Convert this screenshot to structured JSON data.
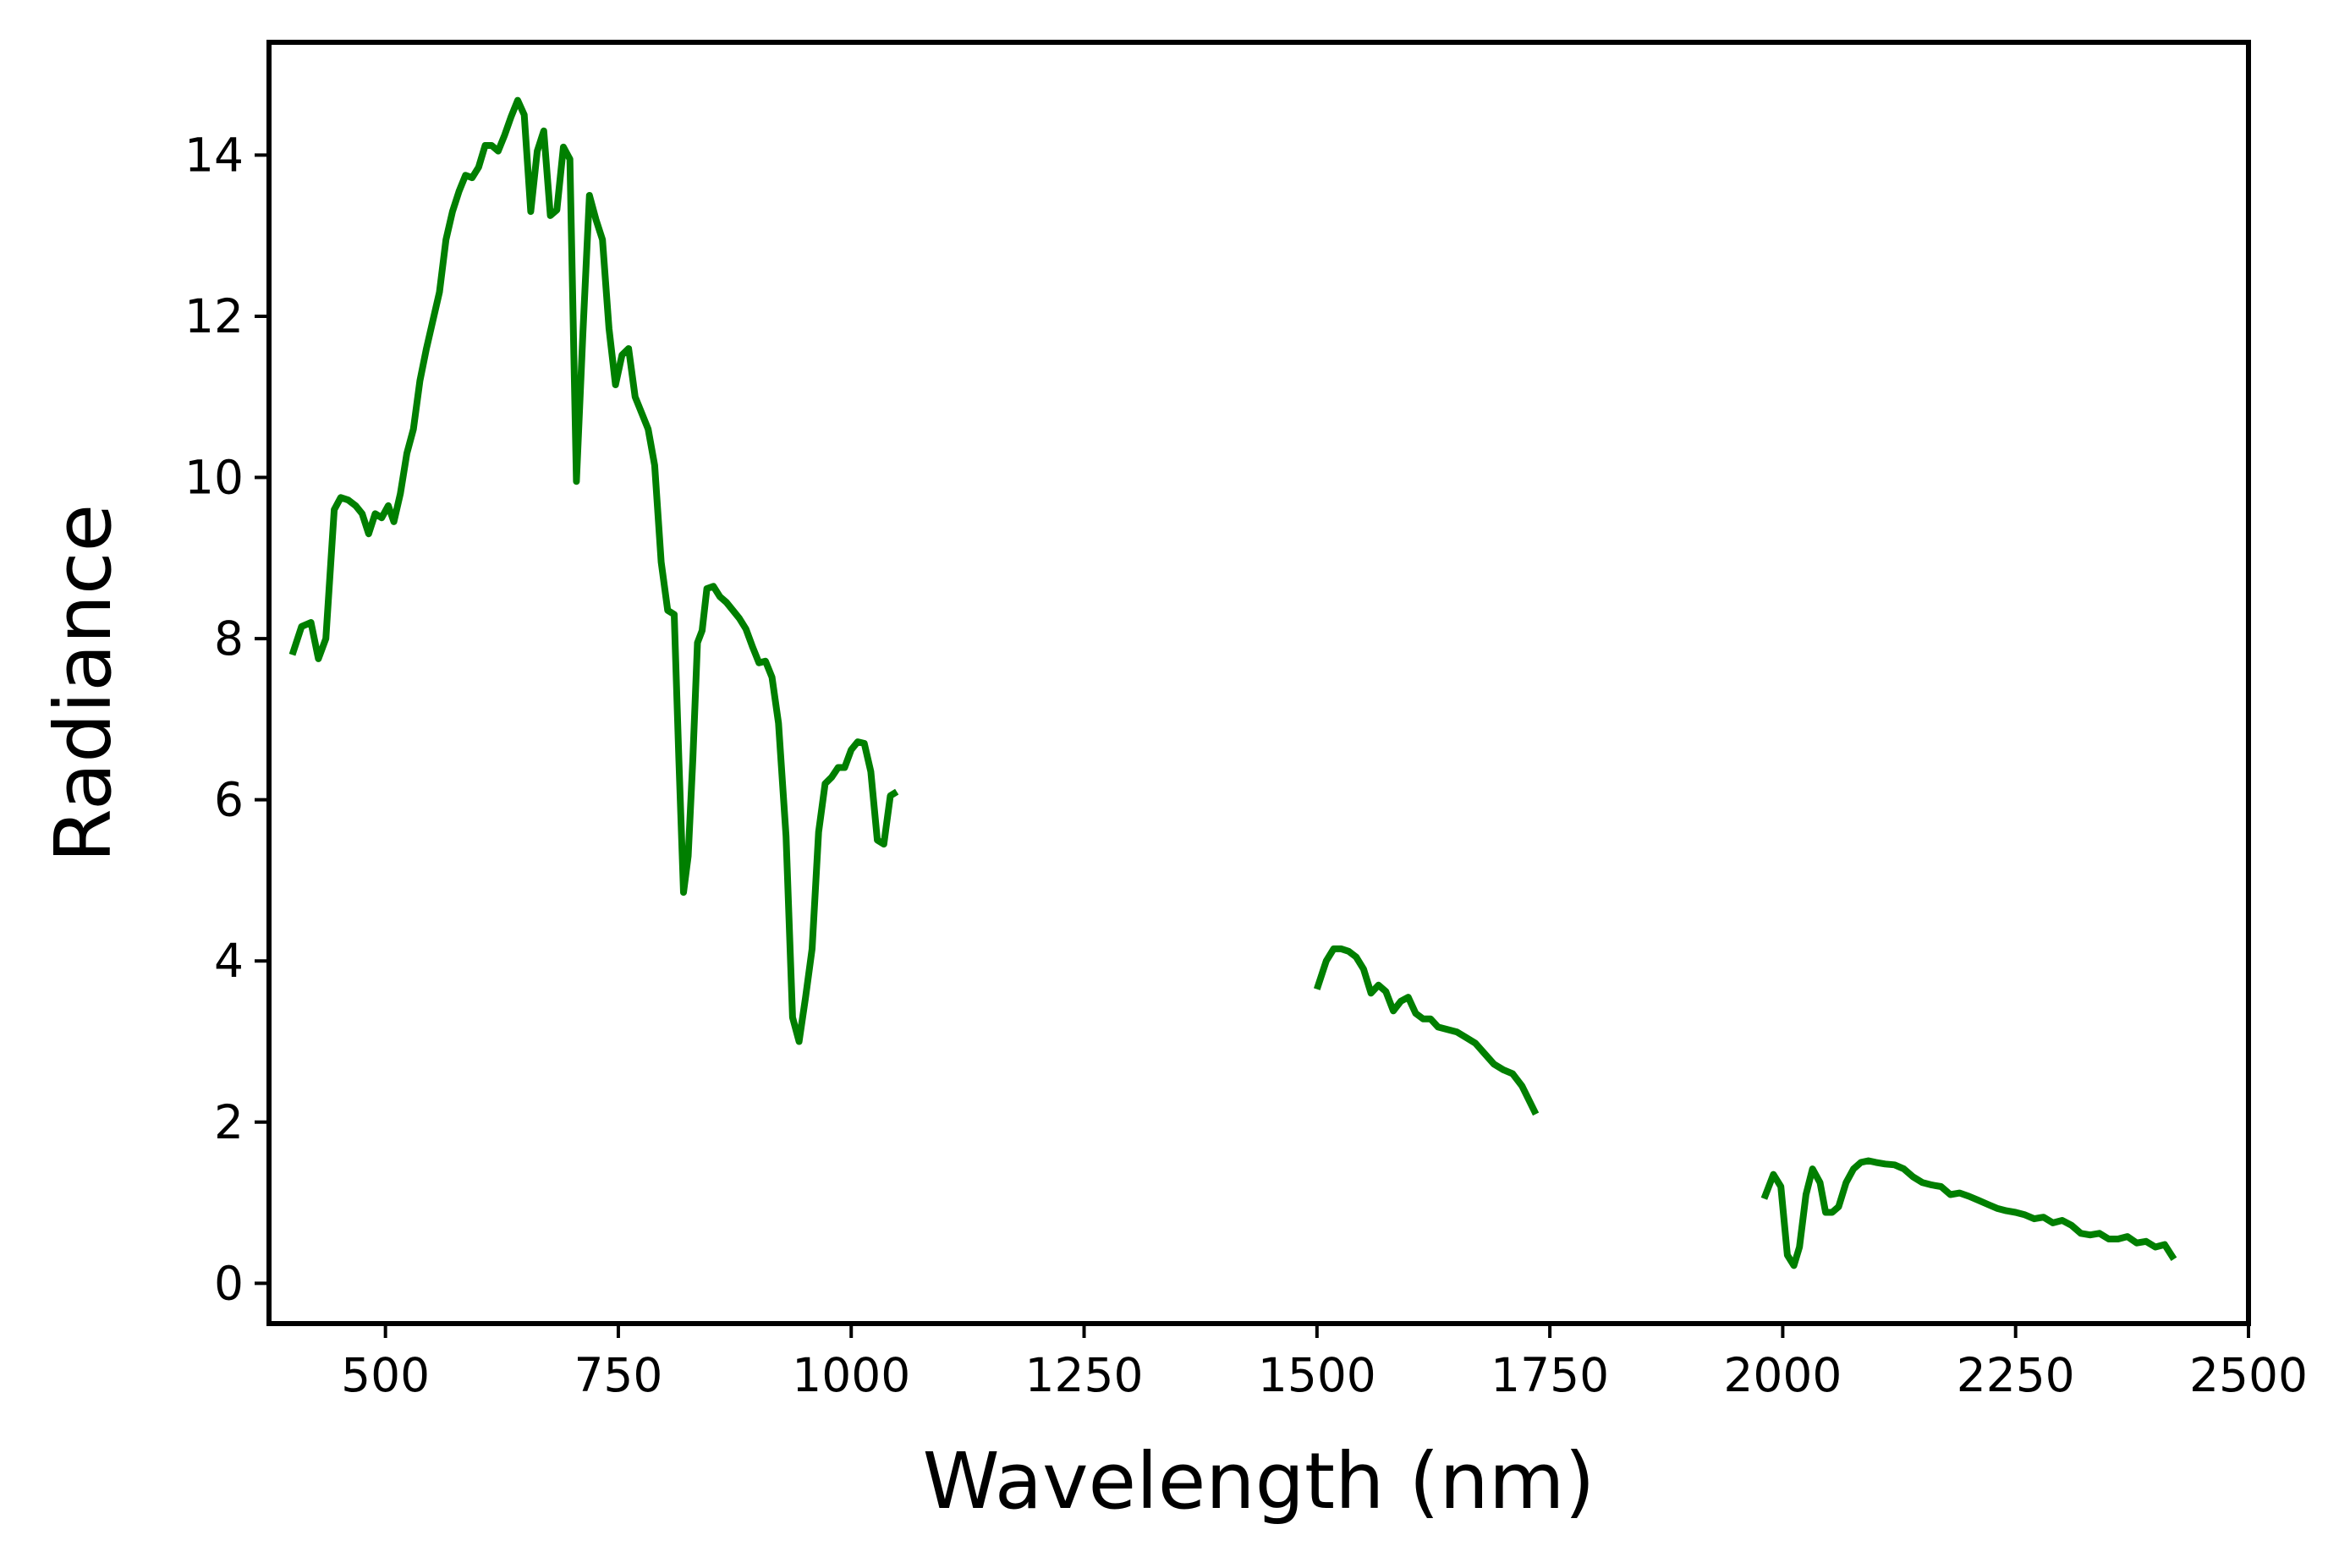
{
  "chart_data": {
    "type": "line",
    "title": "",
    "xlabel": "Wavelength (nm)",
    "ylabel": "Radiance",
    "xlim": [
      375,
      2500
    ],
    "ylim": [
      -0.5,
      15.4
    ],
    "xticks": [
      500,
      750,
      1000,
      1250,
      1500,
      1750,
      2000,
      2250,
      2500
    ],
    "yticks": [
      0,
      2,
      4,
      6,
      8,
      10,
      12,
      14
    ],
    "grid": false,
    "legend": "none",
    "colors": {
      "line": "#007f00",
      "frame": "#000000",
      "background": "#ffffff"
    },
    "series": [
      {
        "segments": [
          [
            [
              400,
              7.8
            ],
            [
              410,
              8.15
            ],
            [
              420,
              8.2
            ],
            [
              428,
              7.75
            ],
            [
              436,
              8.0
            ],
            [
              445,
              9.6
            ],
            [
              452,
              9.75
            ],
            [
              460,
              9.72
            ],
            [
              468,
              9.65
            ],
            [
              475,
              9.55
            ],
            [
              482,
              9.3
            ],
            [
              489,
              9.55
            ],
            [
              496,
              9.5
            ],
            [
              503,
              9.65
            ],
            [
              509,
              9.45
            ],
            [
              516,
              9.8
            ],
            [
              523,
              10.3
            ],
            [
              530,
              10.6
            ],
            [
              537,
              11.2
            ],
            [
              544,
              11.6
            ],
            [
              551,
              11.95
            ],
            [
              558,
              12.3
            ],
            [
              565,
              12.95
            ],
            [
              572,
              13.3
            ],
            [
              579,
              13.55
            ],
            [
              586,
              13.75
            ],
            [
              593,
              13.72
            ],
            [
              600,
              13.85
            ],
            [
              607,
              14.12
            ],
            [
              614,
              14.12
            ],
            [
              621,
              14.05
            ],
            [
              628,
              14.25
            ],
            [
              635,
              14.48
            ],
            [
              642,
              14.68
            ],
            [
              649,
              14.5
            ],
            [
              656,
              13.3
            ],
            [
              663,
              14.05
            ],
            [
              670,
              14.3
            ],
            [
              677,
              13.25
            ],
            [
              684,
              13.32
            ],
            [
              691,
              14.1
            ],
            [
              698,
              13.95
            ],
            [
              705,
              9.95
            ],
            [
              712,
              11.8
            ],
            [
              719,
              13.5
            ],
            [
              726,
              13.2
            ],
            [
              733,
              12.95
            ],
            [
              740,
              11.85
            ],
            [
              747,
              11.15
            ],
            [
              754,
              11.52
            ],
            [
              761,
              11.6
            ],
            [
              768,
              11.0
            ],
            [
              775,
              10.8
            ],
            [
              782,
              10.6
            ],
            [
              789,
              10.15
            ],
            [
              796,
              8.95
            ],
            [
              803,
              8.35
            ],
            [
              810,
              8.3
            ],
            [
              815,
              6.5
            ],
            [
              820,
              4.85
            ],
            [
              825,
              5.3
            ],
            [
              830,
              6.5
            ],
            [
              835,
              7.95
            ],
            [
              840,
              8.1
            ],
            [
              845,
              8.62
            ],
            [
              852,
              8.65
            ],
            [
              859,
              8.52
            ],
            [
              866,
              8.45
            ],
            [
              873,
              8.35
            ],
            [
              880,
              8.25
            ],
            [
              887,
              8.12
            ],
            [
              894,
              7.9
            ],
            [
              901,
              7.7
            ],
            [
              908,
              7.72
            ],
            [
              915,
              7.52
            ],
            [
              922,
              6.95
            ],
            [
              930,
              5.55
            ],
            [
              937,
              3.3
            ],
            [
              944,
              3.0
            ],
            [
              951,
              3.55
            ],
            [
              958,
              4.15
            ],
            [
              965,
              5.6
            ],
            [
              972,
              6.2
            ],
            [
              979,
              6.28
            ],
            [
              986,
              6.4
            ],
            [
              993,
              6.4
            ],
            [
              1000,
              6.62
            ],
            [
              1007,
              6.72
            ],
            [
              1014,
              6.7
            ],
            [
              1021,
              6.35
            ],
            [
              1028,
              5.5
            ],
            [
              1035,
              5.45
            ],
            [
              1042,
              6.05
            ],
            [
              1049,
              6.1
            ]
          ],
          [
            [
              1500,
              3.65
            ],
            [
              1510,
              4.0
            ],
            [
              1518,
              4.15
            ],
            [
              1526,
              4.15
            ],
            [
              1534,
              4.12
            ],
            [
              1542,
              4.05
            ],
            [
              1550,
              3.9
            ],
            [
              1558,
              3.6
            ],
            [
              1566,
              3.7
            ],
            [
              1574,
              3.62
            ],
            [
              1582,
              3.38
            ],
            [
              1590,
              3.5
            ],
            [
              1598,
              3.55
            ],
            [
              1606,
              3.35
            ],
            [
              1614,
              3.28
            ],
            [
              1622,
              3.28
            ],
            [
              1630,
              3.18
            ],
            [
              1640,
              3.15
            ],
            [
              1650,
              3.12
            ],
            [
              1660,
              3.05
            ],
            [
              1670,
              2.98
            ],
            [
              1680,
              2.85
            ],
            [
              1690,
              2.72
            ],
            [
              1700,
              2.65
            ],
            [
              1710,
              2.6
            ],
            [
              1720,
              2.45
            ],
            [
              1735,
              2.1
            ]
          ],
          [
            [
              1980,
              1.05
            ],
            [
              1990,
              1.35
            ],
            [
              1998,
              1.2
            ],
            [
              2005,
              0.35
            ],
            [
              2012,
              0.22
            ],
            [
              2018,
              0.45
            ],
            [
              2025,
              1.1
            ],
            [
              2032,
              1.42
            ],
            [
              2040,
              1.25
            ],
            [
              2046,
              0.88
            ],
            [
              2053,
              0.88
            ],
            [
              2060,
              0.95
            ],
            [
              2068,
              1.25
            ],
            [
              2076,
              1.42
            ],
            [
              2084,
              1.5
            ],
            [
              2092,
              1.52
            ],
            [
              2100,
              1.5
            ],
            [
              2110,
              1.48
            ],
            [
              2120,
              1.47
            ],
            [
              2130,
              1.42
            ],
            [
              2140,
              1.32
            ],
            [
              2150,
              1.25
            ],
            [
              2160,
              1.22
            ],
            [
              2170,
              1.2
            ],
            [
              2180,
              1.1
            ],
            [
              2190,
              1.12
            ],
            [
              2200,
              1.08
            ],
            [
              2210,
              1.03
            ],
            [
              2220,
              0.98
            ],
            [
              2230,
              0.93
            ],
            [
              2240,
              0.9
            ],
            [
              2250,
              0.88
            ],
            [
              2260,
              0.85
            ],
            [
              2270,
              0.8
            ],
            [
              2280,
              0.82
            ],
            [
              2290,
              0.75
            ],
            [
              2300,
              0.78
            ],
            [
              2310,
              0.72
            ],
            [
              2320,
              0.62
            ],
            [
              2330,
              0.6
            ],
            [
              2340,
              0.62
            ],
            [
              2350,
              0.55
            ],
            [
              2360,
              0.55
            ],
            [
              2370,
              0.58
            ],
            [
              2380,
              0.5
            ],
            [
              2390,
              0.52
            ],
            [
              2400,
              0.45
            ],
            [
              2410,
              0.48
            ],
            [
              2420,
              0.3
            ]
          ]
        ]
      }
    ]
  }
}
